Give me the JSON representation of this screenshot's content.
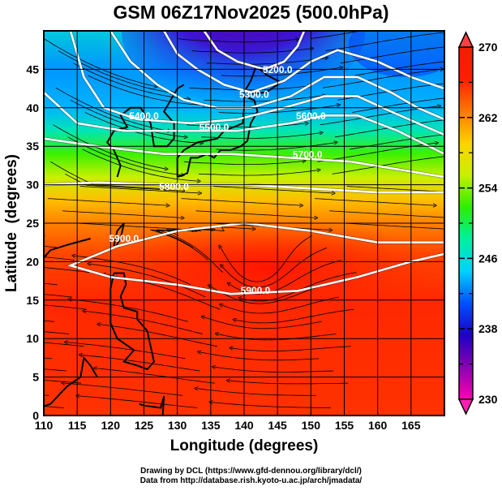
{
  "chart_data": {
    "type": "heatmap",
    "title": "GSM 06Z17Nov2025 (500.0hPa)",
    "xlabel": "Longitude (degrees)",
    "ylabel": "Latitude  (degrees)",
    "xlim": [
      110,
      170
    ],
    "ylim": [
      0,
      50
    ],
    "x_ticks": [
      "110",
      "115",
      "120",
      "125",
      "130",
      "135",
      "140",
      "145",
      "150",
      "155",
      "160",
      "165"
    ],
    "y_ticks": [
      "0",
      "5",
      "10",
      "15",
      "20",
      "25",
      "30",
      "35",
      "40",
      "45"
    ],
    "grid": true,
    "colorbar": {
      "range": [
        230,
        270
      ],
      "tick_labels": [
        "270",
        "262",
        "254",
        "246",
        "238",
        "230"
      ],
      "ticks": [
        270,
        262,
        254,
        246,
        238,
        230
      ],
      "colors": [
        "#ff00b4",
        "#8c00b4",
        "#1e00c8",
        "#0050ff",
        "#00d2ff",
        "#00f0a0",
        "#28f000",
        "#c8f000",
        "#ffd200",
        "#ff7800",
        "#ff1e00",
        "#f01e00"
      ],
      "extend": "both",
      "placement": "right"
    },
    "contour_labels": [
      {
        "text": "5200.0",
        "lon": 145,
        "lat": 44.5
      },
      {
        "text": "5300.0",
        "lon": 141.5,
        "lat": 41.3
      },
      {
        "text": "5400.0",
        "lon": 125,
        "lat": 38.5
      },
      {
        "text": "5500.0",
        "lon": 135.5,
        "lat": 37
      },
      {
        "text": "5600.0",
        "lon": 150,
        "lat": 38.5
      },
      {
        "text": "5700.0",
        "lon": 149.5,
        "lat": 33.5
      },
      {
        "text": "5800.0",
        "lon": 129.5,
        "lat": 29.3
      },
      {
        "text": "5900.0",
        "lon": 122,
        "lat": 22.6
      },
      {
        "text": "5900.0",
        "lon": 141.7,
        "lat": 15.8
      }
    ],
    "geopotential_contours_m": [
      5200,
      5300,
      5400,
      5500,
      5600,
      5700,
      5800,
      5900
    ],
    "annotations": {
      "credit_line1": "Drawing by DCL (https://www.gfd-dennou.org/library/dcl/)",
      "credit_line2": "Data from http://database.rish.kyoto-u.ac.jp/arch/jmadata/"
    }
  }
}
